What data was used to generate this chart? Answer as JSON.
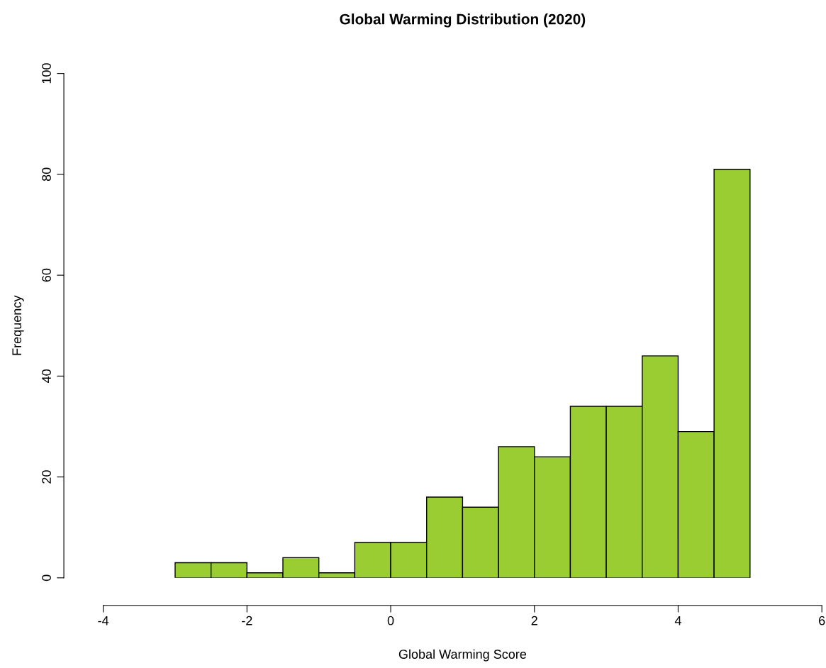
{
  "chart_data": {
    "type": "histogram",
    "title": "Global Warming Distribution (2020)",
    "xlabel": "Global Warming Score",
    "ylabel": "Frequency",
    "bins": [
      -3,
      -2.5,
      -2,
      -1.5,
      -1,
      -0.5,
      0,
      0.5,
      1,
      1.5,
      2,
      2.5,
      3,
      3.5,
      4,
      4.5,
      5
    ],
    "values": [
      3,
      3,
      1,
      4,
      1,
      7,
      7,
      16,
      14,
      26,
      24,
      34,
      34,
      44,
      29,
      81
    ],
    "color": "#9acd32",
    "xlim": [
      -4,
      6
    ],
    "xticks": [
      -4,
      -2,
      0,
      2,
      4,
      6
    ],
    "ylim": [
      0,
      100
    ],
    "yticks": [
      0,
      20,
      40,
      60,
      80,
      100
    ],
    "grid": false
  }
}
